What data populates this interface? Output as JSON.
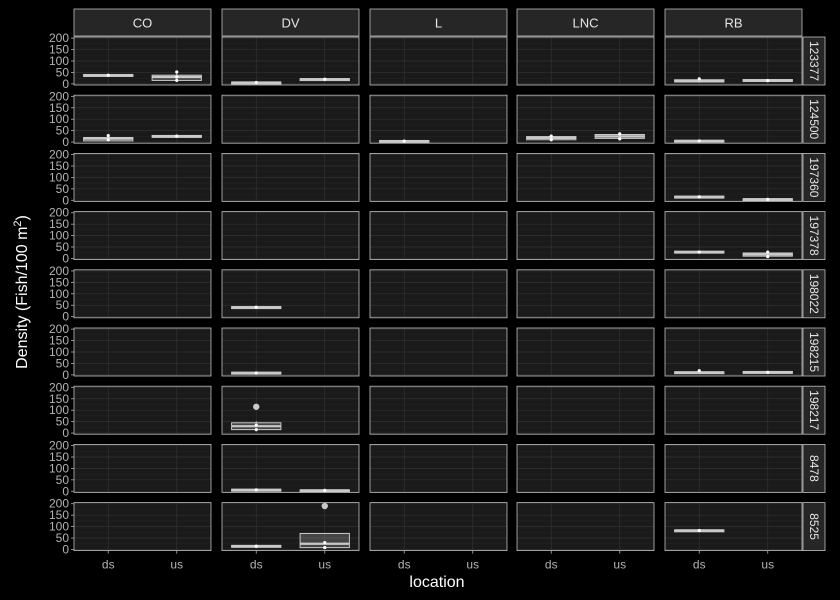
{
  "chart_data": {
    "type": "box",
    "xlabel": "location",
    "ylabel": {
      "main": "Density (Fish/100 m",
      "superscript": "2",
      "close": ")"
    },
    "facet_cols": [
      "CO",
      "DV",
      "L",
      "LNC",
      "RB"
    ],
    "facet_rows": [
      "123377",
      "124500",
      "197360",
      "197378",
      "198022",
      "198215",
      "198217",
      "8478",
      "8525"
    ],
    "x_categories": [
      "ds",
      "us"
    ],
    "y_ticks": [
      0,
      50,
      100,
      150,
      200
    ],
    "ylim": [
      -5,
      205
    ],
    "grid": true,
    "colors": {
      "background": "#000000",
      "panel": "#1a1a1a",
      "panel_border": "#bfbfbf",
      "strip": "#262626",
      "box_fill": "#c9c9c9",
      "point": "#ffffff"
    },
    "boxes": [
      {
        "row": "123377",
        "col": "CO",
        "x": "ds",
        "q1": 36,
        "median": 38,
        "q3": 41,
        "lo": 34,
        "hi": 44,
        "points": [
          38
        ]
      },
      {
        "row": "123377",
        "col": "CO",
        "x": "us",
        "q1": 15,
        "median": 30,
        "q3": 38,
        "lo": 12,
        "hi": 52,
        "points": [
          15,
          30,
          52
        ]
      },
      {
        "row": "123377",
        "col": "DV",
        "x": "ds",
        "q1": 4,
        "median": 6,
        "q3": 8,
        "lo": 2,
        "hi": 10,
        "points": [
          6
        ]
      },
      {
        "row": "123377",
        "col": "DV",
        "x": "us",
        "q1": 18,
        "median": 20,
        "q3": 23,
        "lo": 16,
        "hi": 25,
        "points": [
          20
        ]
      },
      {
        "row": "123377",
        "col": "RB",
        "x": "ds",
        "q1": 8,
        "median": 12,
        "q3": 18,
        "lo": 5,
        "hi": 22,
        "points": [
          22
        ]
      },
      {
        "row": "123377",
        "col": "RB",
        "x": "us",
        "q1": 11,
        "median": 14,
        "q3": 19,
        "lo": 9,
        "hi": 21,
        "points": [
          14
        ]
      },
      {
        "row": "124500",
        "col": "CO",
        "x": "ds",
        "q1": 5,
        "median": 15,
        "q3": 20,
        "lo": 3,
        "hi": 30,
        "points": [
          10,
          28
        ]
      },
      {
        "row": "124500",
        "col": "CO",
        "x": "us",
        "q1": 24,
        "median": 26,
        "q3": 29,
        "lo": 22,
        "hi": 31,
        "points": [
          26
        ]
      },
      {
        "row": "124500",
        "col": "L",
        "x": "ds",
        "q1": 1,
        "median": 4,
        "q3": 7,
        "lo": 0,
        "hi": 9,
        "points": [
          4
        ]
      },
      {
        "row": "124500",
        "col": "LNC",
        "x": "ds",
        "q1": 10,
        "median": 18,
        "q3": 24,
        "lo": 6,
        "hi": 28,
        "points": [
          10,
          26
        ]
      },
      {
        "row": "124500",
        "col": "LNC",
        "x": "us",
        "q1": 16,
        "median": 25,
        "q3": 33,
        "lo": 10,
        "hi": 38,
        "points": [
          14,
          36
        ]
      },
      {
        "row": "124500",
        "col": "RB",
        "x": "ds",
        "q1": 3,
        "median": 5,
        "q3": 8,
        "lo": 1,
        "hi": 10,
        "points": [
          5
        ]
      },
      {
        "row": "197360",
        "col": "RB",
        "x": "ds",
        "q1": 12,
        "median": 15,
        "q3": 18,
        "lo": 10,
        "hi": 20,
        "points": [
          15
        ]
      },
      {
        "row": "197360",
        "col": "RB",
        "x": "us",
        "q1": 1,
        "median": 4,
        "q3": 7,
        "lo": 0,
        "hi": 9,
        "points": [
          4
        ]
      },
      {
        "row": "197378",
        "col": "RB",
        "x": "ds",
        "q1": 25,
        "median": 28,
        "q3": 32,
        "lo": 23,
        "hi": 34,
        "points": [
          28
        ]
      },
      {
        "row": "197378",
        "col": "RB",
        "x": "us",
        "q1": 10,
        "median": 18,
        "q3": 24,
        "lo": 6,
        "hi": 30,
        "points": [
          8,
          28
        ]
      },
      {
        "row": "198022",
        "col": "DV",
        "x": "ds",
        "q1": 38,
        "median": 41,
        "q3": 44,
        "lo": 36,
        "hi": 46,
        "points": [
          41
        ]
      },
      {
        "row": "198215",
        "col": "DV",
        "x": "ds",
        "q1": 5,
        "median": 8,
        "q3": 12,
        "lo": 3,
        "hi": 14,
        "points": [
          8
        ]
      },
      {
        "row": "198215",
        "col": "RB",
        "x": "ds",
        "q1": 7,
        "median": 10,
        "q3": 14,
        "lo": 5,
        "hi": 16,
        "points": [
          18
        ]
      },
      {
        "row": "198215",
        "col": "RB",
        "x": "us",
        "q1": 7,
        "median": 11,
        "q3": 15,
        "lo": 5,
        "hi": 17,
        "points": [
          11
        ]
      },
      {
        "row": "198217",
        "col": "DV",
        "x": "ds",
        "q1": 15,
        "median": 30,
        "q3": 45,
        "lo": 8,
        "hi": 52,
        "points": [
          15,
          35
        ],
        "outliers": [
          115
        ]
      },
      {
        "row": "8478",
        "col": "DV",
        "x": "ds",
        "q1": 4,
        "median": 6,
        "q3": 9,
        "lo": 2,
        "hi": 11,
        "points": [
          6
        ]
      },
      {
        "row": "8478",
        "col": "DV",
        "x": "us",
        "q1": 2,
        "median": 4,
        "q3": 6,
        "lo": 1,
        "hi": 8,
        "points": [
          4
        ]
      },
      {
        "row": "8525",
        "col": "DV",
        "x": "ds",
        "q1": 10,
        "median": 14,
        "q3": 18,
        "lo": 8,
        "hi": 20,
        "points": [
          14
        ]
      },
      {
        "row": "8525",
        "col": "DV",
        "x": "us",
        "q1": 8,
        "median": 25,
        "q3": 70,
        "lo": 5,
        "hi": 72,
        "points": [
          8,
          30
        ],
        "outliers": [
          190
        ]
      },
      {
        "row": "8525",
        "col": "RB",
        "x": "ds",
        "q1": 80,
        "median": 83,
        "q3": 86,
        "lo": 78,
        "hi": 88,
        "points": [
          83
        ]
      }
    ]
  }
}
